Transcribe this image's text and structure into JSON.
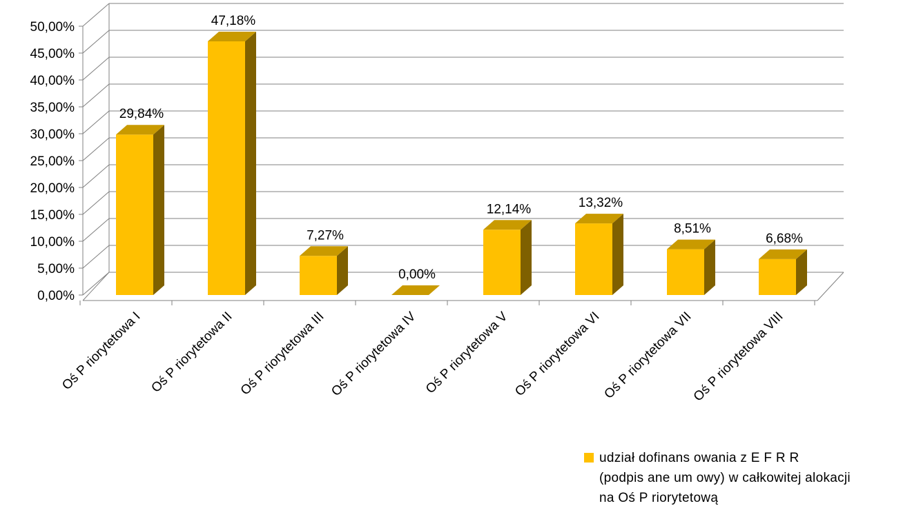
{
  "chart_data": {
    "type": "bar",
    "style": "3d-column",
    "categories": [
      "Oś P riorytetowa I",
      "Oś P riorytetowa II",
      "Oś P riorytetowa III",
      "Oś P riorytetowa IV",
      "Oś P riorytetowa V",
      "Oś P riorytetowa VI",
      "Oś P riorytetowa VII",
      "Oś P riorytetowa VIII"
    ],
    "series": [
      {
        "name": "udział dofinans owania z E F R R (podpis ane um owy) w całkowitej alokacji na Oś P riorytetową",
        "values": [
          29.84,
          47.18,
          7.27,
          0.0,
          12.14,
          13.32,
          8.51,
          6.68
        ],
        "data_labels": [
          "29,84%",
          "47,18%",
          "7,27%",
          "0,00%",
          "12,14%",
          "13,32%",
          "8,51%",
          "6,68%"
        ]
      }
    ],
    "ylim": [
      0,
      50
    ],
    "yticks": [
      0,
      5,
      10,
      15,
      20,
      25,
      30,
      35,
      40,
      45,
      50
    ],
    "ytick_labels": [
      "0,00%",
      "5,00%",
      "10,00%",
      "15,00%",
      "20,00%",
      "25,00%",
      "30,00%",
      "35,00%",
      "40,00%",
      "45,00%",
      "50,00%"
    ],
    "title": "",
    "xlabel": "",
    "ylabel": "",
    "grid": true,
    "legend_position": "bottom-right",
    "colors": {
      "bar_front": "#FFC000",
      "bar_top": "#C99A00",
      "bar_side": "#7F6000",
      "grid": "#808080"
    }
  },
  "legend": {
    "line1": "udział dofinans owania z E F R R",
    "line2": "(podpis ane um owy) w całkowitej alokacji",
    "line3": "na Oś  P riorytetową"
  }
}
